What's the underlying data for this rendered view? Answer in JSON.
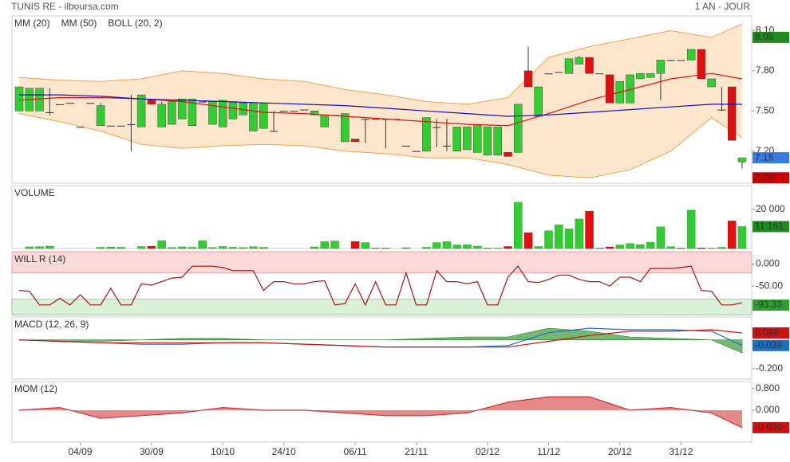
{
  "header": {
    "title": "TUNIS RE - ilboursa.com",
    "period": "1 AN - JOUR"
  },
  "chart_data": [
    {
      "type": "candlestick",
      "categories": [
        null,
        null,
        null,
        null,
        null,
        null,
        "04/09",
        null,
        null,
        null,
        null,
        null,
        null,
        "30/09",
        null,
        null,
        null,
        null,
        null,
        null,
        "10/10",
        null,
        null,
        null,
        null,
        null,
        "24/10",
        null,
        null,
        null,
        null,
        null,
        null,
        "06/11",
        null,
        null,
        null,
        null,
        null,
        "21/11",
        null,
        null,
        null,
        null,
        null,
        null,
        "02/12",
        null,
        null,
        null,
        null,
        null,
        "11/12",
        null,
        null,
        null,
        null,
        null,
        null,
        "20/12",
        null,
        null,
        null,
        null,
        null,
        "31/12",
        null,
        null,
        null,
        null,
        null,
        null
      ],
      "open": [
        7.5,
        7.5,
        7.5,
        7.49,
        7.55,
        7.56,
        7.38,
        7.56,
        7.39,
        7.39,
        7.39,
        7.4,
        7.38,
        7.58,
        7.38,
        7.4,
        7.44,
        7.39,
        7.57,
        7.4,
        7.38,
        7.44,
        7.47,
        7.35,
        7.37,
        7.35,
        7.5,
        7.5,
        7.51,
        7.47,
        7.38,
        7.47,
        7.27,
        7.29,
        7.44,
        7.44,
        7.44,
        7.44,
        7.24,
        7.2,
        7.2,
        7.38,
        7.24,
        7.2,
        7.21,
        7.19,
        7.17,
        7.17,
        7.19,
        7.19,
        7.8,
        7.46,
        7.78,
        7.79,
        7.78,
        7.85,
        7.9,
        7.78,
        7.77,
        7.56,
        7.56,
        7.74,
        7.75,
        7.78,
        7.88,
        7.88,
        7.88,
        7.96,
        7.68,
        7.51,
        7.68,
        7.12
      ],
      "high": [
        7.68,
        7.67,
        7.67,
        7.67,
        7.55,
        7.56,
        7.38,
        7.56,
        7.56,
        7.39,
        7.39,
        7.62,
        7.62,
        7.58,
        7.57,
        7.57,
        7.59,
        7.59,
        7.57,
        7.57,
        7.58,
        7.57,
        7.56,
        7.56,
        7.56,
        7.5,
        7.5,
        7.5,
        7.51,
        7.5,
        7.47,
        7.47,
        7.48,
        7.29,
        7.44,
        7.44,
        7.44,
        7.44,
        7.24,
        7.2,
        7.45,
        7.44,
        7.44,
        7.38,
        7.38,
        7.39,
        7.38,
        7.38,
        7.19,
        7.55,
        7.98,
        7.68,
        7.78,
        7.79,
        7.89,
        7.91,
        7.9,
        7.78,
        7.77,
        7.72,
        7.77,
        7.78,
        7.78,
        7.88,
        7.88,
        7.88,
        7.96,
        7.96,
        7.74,
        7.68,
        7.68,
        7.15
      ],
      "low": [
        7.5,
        7.5,
        7.5,
        7.47,
        7.55,
        7.56,
        7.38,
        7.56,
        7.39,
        7.39,
        7.39,
        7.2,
        7.38,
        7.55,
        7.38,
        7.4,
        7.44,
        7.39,
        7.57,
        7.4,
        7.38,
        7.44,
        7.47,
        7.35,
        7.37,
        7.35,
        7.5,
        7.5,
        7.51,
        7.47,
        7.38,
        7.47,
        7.27,
        7.27,
        7.26,
        7.44,
        7.22,
        7.44,
        7.24,
        7.2,
        7.2,
        7.23,
        7.2,
        7.2,
        7.21,
        7.19,
        7.17,
        7.17,
        7.16,
        7.19,
        7.68,
        7.46,
        7.78,
        7.79,
        7.78,
        7.85,
        7.78,
        7.78,
        7.56,
        7.56,
        7.56,
        7.74,
        7.75,
        7.58,
        7.88,
        7.88,
        7.88,
        7.74,
        7.68,
        7.5,
        7.28,
        7.07
      ],
      "close": [
        7.68,
        7.67,
        7.67,
        7.49,
        7.55,
        7.56,
        7.38,
        7.56,
        7.54,
        7.39,
        7.39,
        7.4,
        7.62,
        7.55,
        7.55,
        7.57,
        7.59,
        7.59,
        7.57,
        7.57,
        7.58,
        7.57,
        7.56,
        7.56,
        7.56,
        7.35,
        7.5,
        7.5,
        7.51,
        7.5,
        7.47,
        7.47,
        7.48,
        7.27,
        7.44,
        7.44,
        7.44,
        7.44,
        7.24,
        7.2,
        7.45,
        7.38,
        7.24,
        7.38,
        7.38,
        7.39,
        7.38,
        7.38,
        7.16,
        7.55,
        7.68,
        7.68,
        7.78,
        7.79,
        7.89,
        7.9,
        7.78,
        7.78,
        7.56,
        7.72,
        7.77,
        7.78,
        7.78,
        7.88,
        7.88,
        7.88,
        7.96,
        7.74,
        7.74,
        7.51,
        7.28,
        7.15
      ],
      "up_color": "#33cc33",
      "down_color": "#e01010",
      "x": [
        0,
        4,
        8,
        12,
        16,
        20,
        24,
        28,
        32,
        36,
        40,
        44,
        48,
        52,
        56,
        60,
        64,
        68,
        71
      ],
      "series": [
        {
          "name": "MM (20)",
          "color": "#dd1111",
          "values": [
            7.58,
            7.6,
            7.6,
            7.59,
            7.57,
            7.53,
            7.49,
            7.48,
            7.46,
            7.44,
            7.42,
            7.4,
            7.39,
            7.48,
            7.58,
            7.66,
            7.74,
            7.78,
            7.74
          ]
        },
        {
          "name": "MM (50)",
          "color": "#1111bb",
          "values": [
            7.62,
            7.62,
            7.61,
            7.59,
            7.58,
            7.57,
            7.56,
            7.55,
            7.54,
            7.52,
            7.5,
            7.48,
            7.46,
            7.47,
            7.49,
            7.51,
            7.53,
            7.55,
            7.55
          ]
        },
        {
          "name": "BOLL (20, 2)",
          "color": "#f0a050",
          "fill": "#fde6cc",
          "values": [
            7.75,
            7.73,
            7.72,
            7.74,
            7.8,
            7.78,
            7.74,
            7.72,
            7.66,
            7.62,
            7.57,
            7.55,
            7.6,
            7.9,
            7.98,
            8.04,
            8.1,
            8.05,
            8.15
          ],
          "lower": [
            7.48,
            7.42,
            7.35,
            7.25,
            7.22,
            7.24,
            7.25,
            7.24,
            7.2,
            7.18,
            7.15,
            7.15,
            7.1,
            7.02,
            7.0,
            7.06,
            7.2,
            7.45,
            7.3
          ]
        }
      ],
      "ylim": [
        6.96,
        8.21
      ],
      "yticks": [
        {
          "value": 8.1,
          "label": "8.10"
        },
        {
          "value": 7.8,
          "label": "7.80"
        },
        {
          "value": 7.5,
          "label": "7.50"
        },
        {
          "value": 7.2,
          "label": "7.20"
        }
      ],
      "markers": [
        {
          "value": 8.05,
          "color": "#1f8a1f"
        },
        {
          "value": 7.15,
          "color": "#3a7be0"
        },
        {
          "value": 7,
          "label": "7.00",
          "color": "#cc0000"
        }
      ]
    },
    {
      "type": "bar",
      "title": "VOLUME",
      "values": [
        0,
        800,
        900,
        1200,
        0,
        0,
        0,
        0,
        600,
        700,
        600,
        0,
        1000,
        1100,
        4000,
        500,
        800,
        600,
        4000,
        500,
        1000,
        600,
        500,
        900,
        600,
        0,
        0,
        0,
        0,
        800,
        3500,
        3800,
        0,
        3600,
        3000,
        300,
        300,
        0,
        400,
        0,
        600,
        3000,
        3500,
        1800,
        2000,
        1200,
        300,
        200,
        1000,
        23500,
        8000,
        1000,
        9000,
        12000,
        10000,
        15000,
        19000,
        300,
        800,
        1800,
        2500,
        2000,
        3200,
        11000,
        900,
        300,
        19500,
        300,
        200,
        600,
        14000,
        11161
      ],
      "ylim": [
        0,
        32000
      ],
      "yticks": [
        {
          "value": 20000,
          "label": "20 000"
        }
      ],
      "markers": [
        {
          "value": 11161,
          "label": "11 161",
          "color": "#1f8a1f"
        }
      ]
    },
    {
      "type": "line",
      "title": "WILL R (14)",
      "color": "#aa1111",
      "values": [
        -60,
        -62,
        -93,
        -93,
        -78,
        -93,
        -70,
        -93,
        -93,
        -55,
        -93,
        -93,
        -45,
        -48,
        -40,
        -32,
        -30,
        -5,
        -5,
        -5,
        -8,
        -15,
        -15,
        -15,
        -60,
        -40,
        -40,
        -45,
        -45,
        -40,
        -38,
        -93,
        -90,
        -45,
        -93,
        -40,
        -93,
        -93,
        -20,
        -93,
        -93,
        -15,
        -40,
        -40,
        -45,
        -40,
        -93,
        -93,
        -30,
        -5,
        -40,
        -42,
        -35,
        -25,
        -25,
        -35,
        -40,
        -40,
        -50,
        -30,
        -30,
        -40,
        -10,
        -10,
        -10,
        -8,
        -5,
        -60,
        -62,
        -93,
        -93,
        -88
      ],
      "overbought": -20,
      "oversold": -80,
      "ylim": [
        -115,
        28
      ],
      "yticks": [
        {
          "value": 0,
          "label": "0.000"
        },
        {
          "value": -50,
          "label": "-50.00"
        }
      ],
      "markers": [
        {
          "value": -93.33,
          "color": "#2e9e2e"
        }
      ]
    },
    {
      "type": "line",
      "title": "MACD (12, 26, 9)",
      "x": [
        0,
        4,
        8,
        12,
        16,
        20,
        24,
        28,
        32,
        36,
        40,
        44,
        48,
        52,
        56,
        60,
        64,
        68,
        71
      ],
      "series": [
        {
          "color": "#1a6fc0",
          "values": [
            0.0,
            -0.01,
            -0.02,
            -0.03,
            -0.03,
            -0.02,
            -0.02,
            -0.03,
            -0.04,
            -0.05,
            -0.05,
            -0.05,
            -0.04,
            0.05,
            0.08,
            0.07,
            0.07,
            0.06,
            -0.039
          ]
        },
        {
          "color": "#cc1111",
          "values": [
            0.0,
            -0.01,
            -0.02,
            -0.02,
            -0.02,
            -0.02,
            -0.02,
            -0.03,
            -0.04,
            -0.05,
            -0.05,
            -0.05,
            -0.05,
            -0.01,
            0.03,
            0.06,
            0.06,
            0.07,
            0.048
          ]
        }
      ],
      "histogram": [
        0.0,
        -0.01,
        -0.01,
        0.0,
        0.01,
        0.01,
        0.0,
        0.0,
        0.0,
        0.0,
        0.01,
        0.02,
        0.02,
        0.08,
        0.06,
        0.02,
        0.01,
        0.0,
        -0.09
      ],
      "histogram_color": "#3a9a3a",
      "ylim": [
        -0.272,
        0.158
      ],
      "yticks": [
        {
          "value": -0.2,
          "label": "-0.200"
        }
      ],
      "markers": [
        {
          "value": 0.048,
          "color": "#cc1111"
        },
        {
          "value": -0.039,
          "color": "#1a6fc0"
        }
      ]
    },
    {
      "type": "area",
      "title": "MOM (12)",
      "color": "#cc3333",
      "fill": "#e58a8a",
      "x": [
        0,
        4,
        8,
        12,
        16,
        20,
        24,
        28,
        32,
        36,
        40,
        44,
        48,
        52,
        56,
        60,
        64,
        68,
        71
      ],
      "values": [
        0,
        0.1,
        -0.3,
        -0.2,
        -0.1,
        0.1,
        0,
        0,
        -0.1,
        -0.2,
        -0.2,
        -0.1,
        0.3,
        0.5,
        0.5,
        0,
        0.1,
        -0.1,
        -0.65
      ],
      "ylim": [
        -1.185,
        1.067
      ],
      "yticks": [
        {
          "value": 0.8,
          "label": "0.800"
        },
        {
          "value": 0,
          "label": "0.000"
        }
      ],
      "markers": [
        {
          "value": -0.65,
          "label": "-0.650",
          "color": "#cc1111"
        }
      ]
    }
  ]
}
